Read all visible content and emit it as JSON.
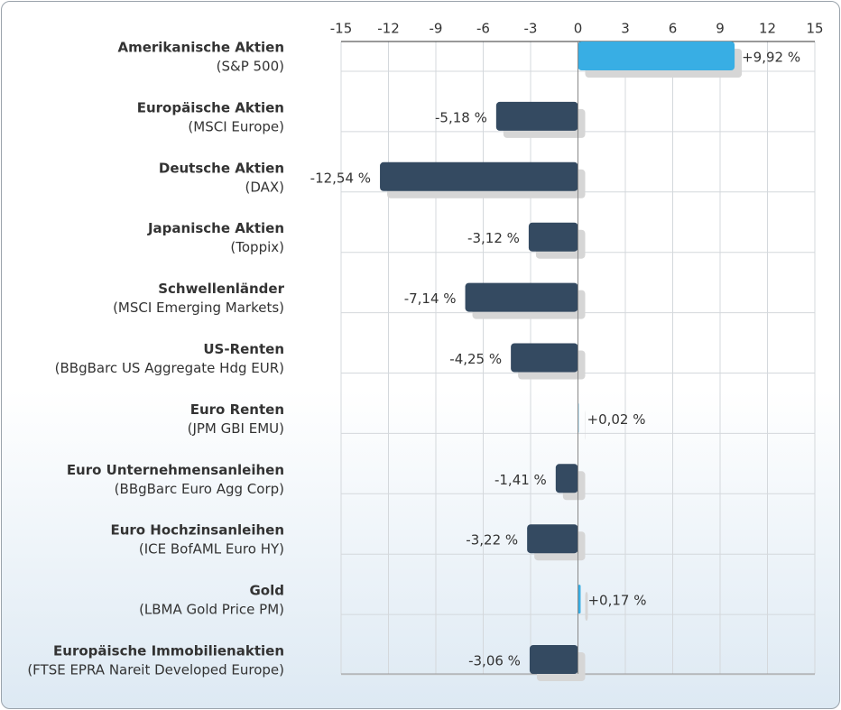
{
  "chart_data": {
    "type": "bar",
    "orientation": "horizontal",
    "categories": [
      "Amerikanische Aktien",
      "Europäische Aktien",
      "Deutsche Aktien",
      "Japanische Aktien",
      "Schwellenländer",
      "US-Renten",
      "Euro Renten",
      "Euro Unternehmensanleihen",
      "Euro Hochzinsanleihen",
      "Gold",
      "Europäische Immobilienaktien"
    ],
    "category_sublabels": [
      "(S&P 500)",
      "(MSCI Europe)",
      "(DAX)",
      "(Toppix)",
      "(MSCI Emerging Markets)",
      "(BBgBarc US Aggregate Hdg EUR)",
      "(JPM GBI EMU)",
      "(BBgBarc Euro Agg Corp)",
      "(ICE BofAML Euro HY)",
      "(LBMA Gold Price PM)",
      "(FTSE EPRA Nareit Developed Europe)"
    ],
    "values": [
      9.92,
      -5.18,
      -12.54,
      -3.12,
      -7.14,
      -4.25,
      0.02,
      -1.41,
      -3.22,
      0.17,
      -3.06
    ],
    "value_labels": [
      "+9,92 %",
      "-5,18 %",
      "-12,54 %",
      "-3,12 %",
      "-7,14 %",
      "-4,25 %",
      "+0,02 %",
      "-1,41 %",
      "-3,22 %",
      "+0,17 %",
      "-3,06 %"
    ],
    "positive_color": "#38aee4",
    "negative_color": "#344a61",
    "positive_label_color": "#333333",
    "negative_label_color": "#c0393b",
    "xlim": [
      -15,
      15
    ],
    "xticks": [
      -15,
      -12,
      -9,
      -6,
      -3,
      0,
      3,
      6,
      9,
      12,
      15
    ],
    "grid": true
  }
}
